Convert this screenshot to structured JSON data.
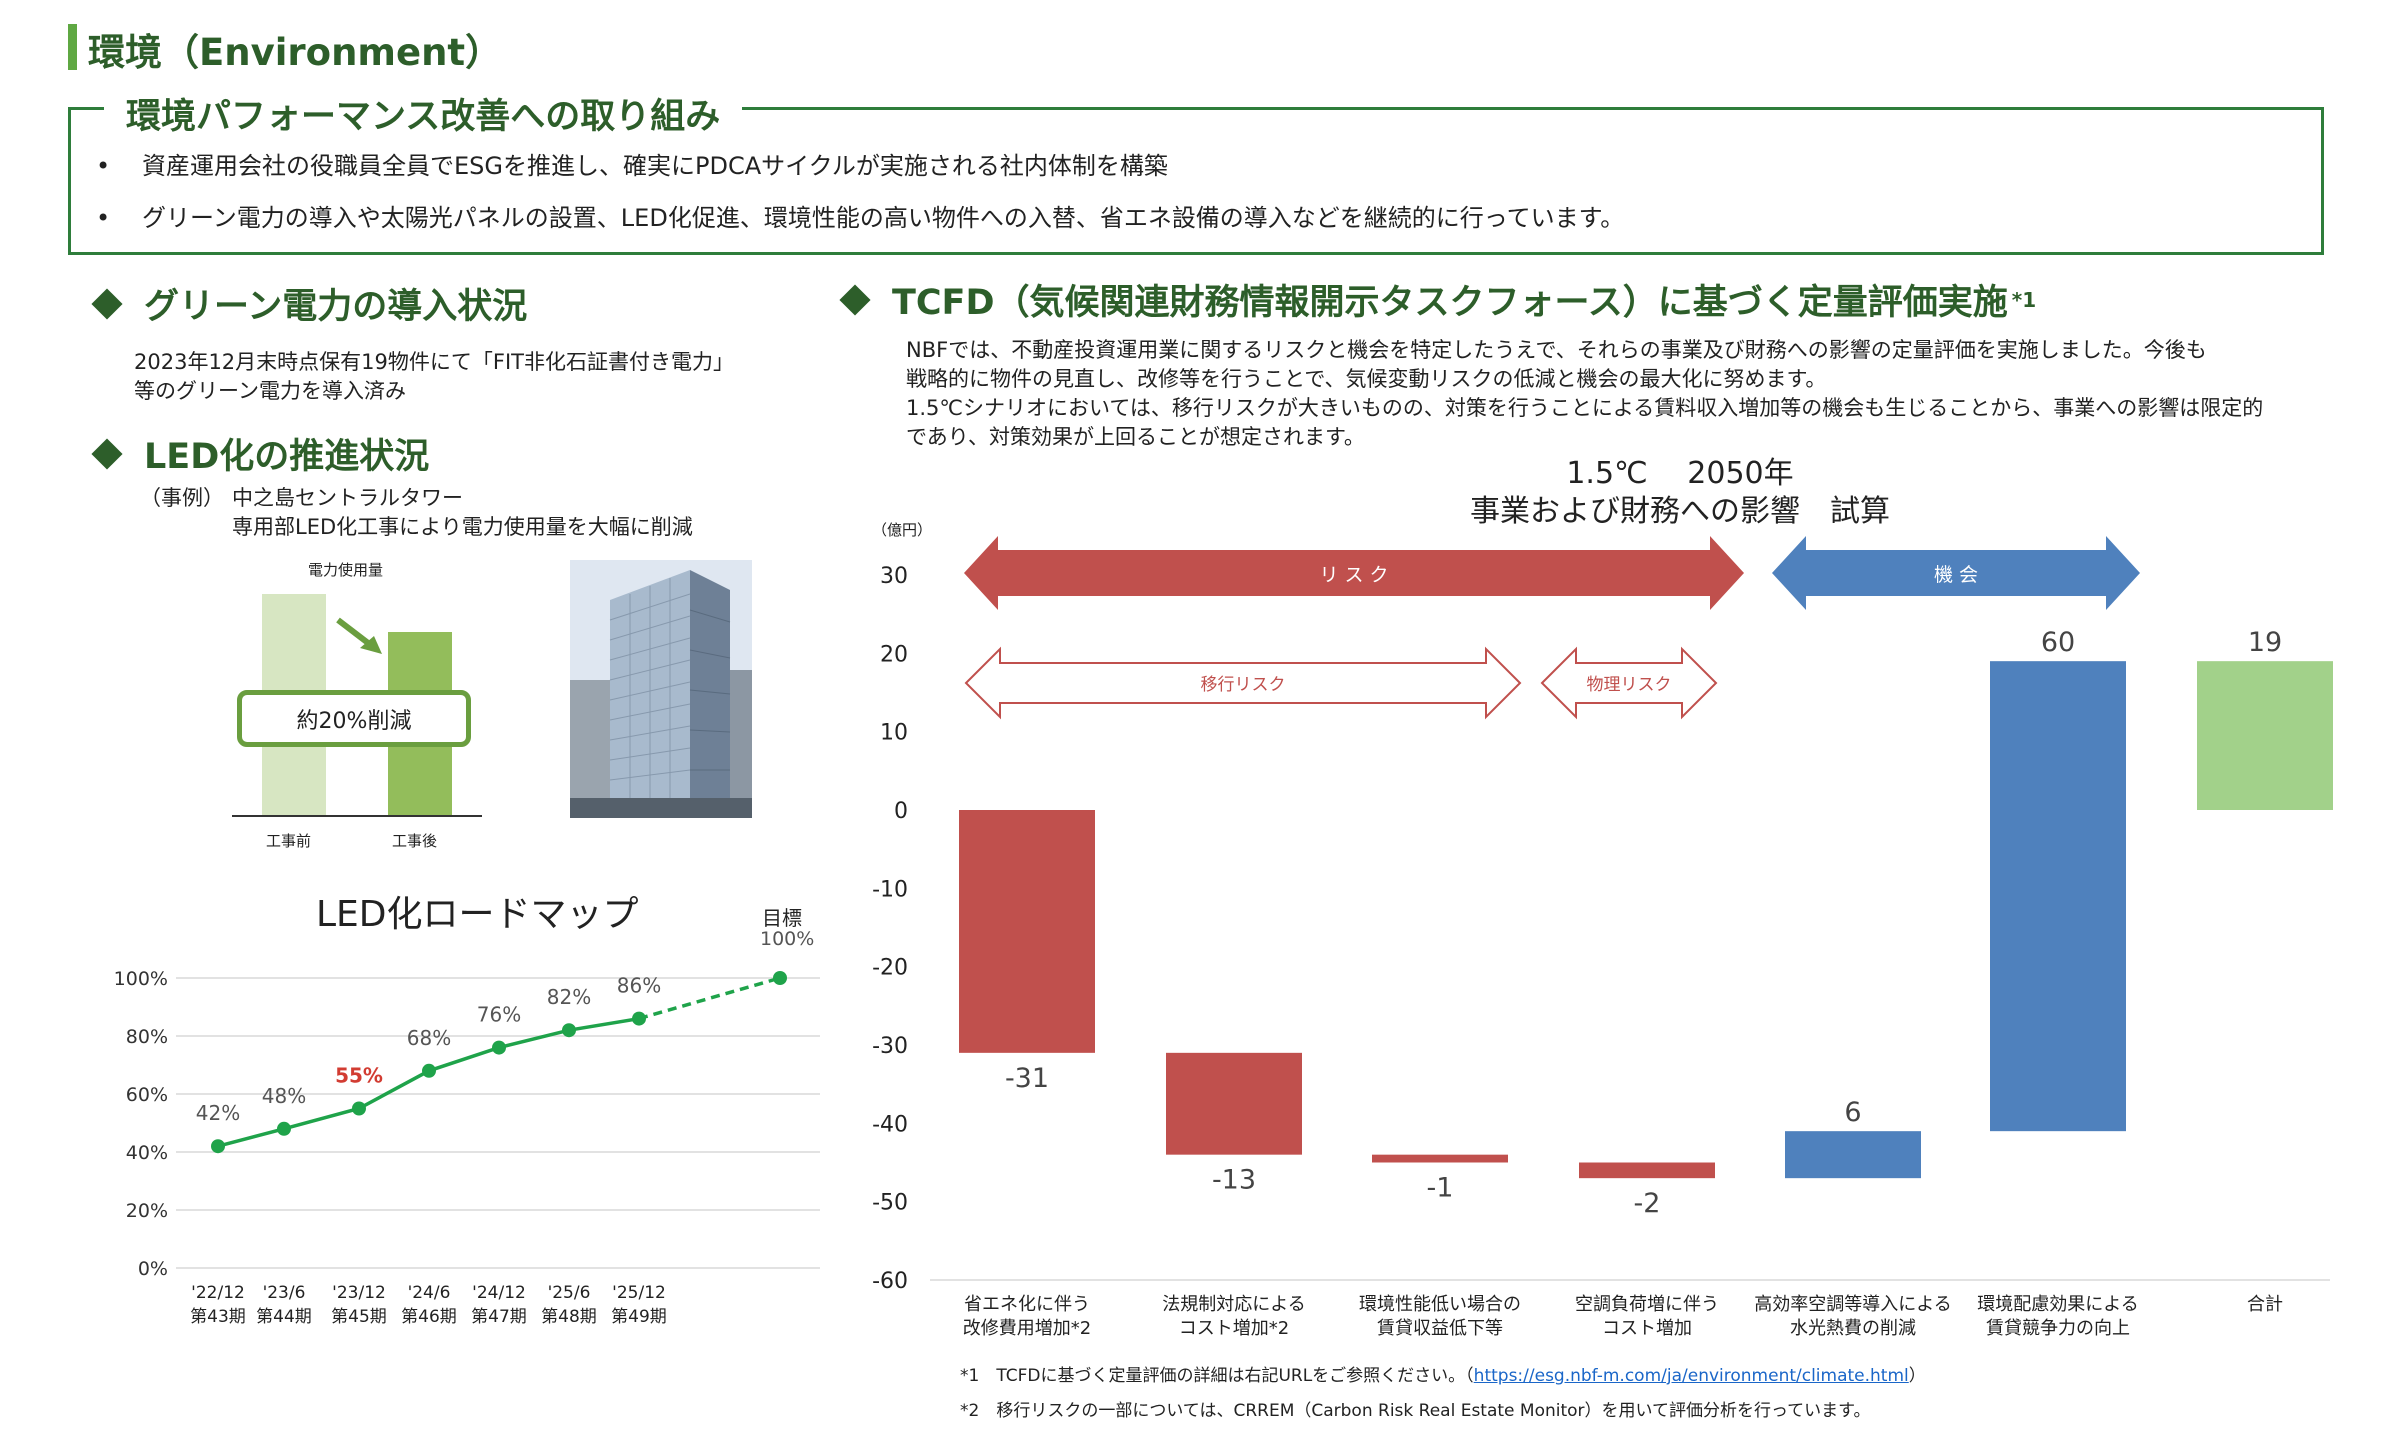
{
  "header": {
    "title": "環境（Environment）"
  },
  "performance": {
    "title": "環境パフォーマンス改善への取り組み",
    "bullets": [
      "資産運用会社の役職員全員でESGを推進し、確実にPDCAサイクルが実施される社内体制を構築",
      "グリーン電力の導入や太陽光パネルの設置、LED化促進、環境性能の高い物件への入替、省エネ設備の導入などを継続的に行っています。"
    ],
    "bullet_mark": "•"
  },
  "green_power": {
    "title": "グリーン電力の導入状況",
    "lines": [
      "2023年12月末時点保有19物件にて「FIT非化石証書付き電力」",
      "等のグリーン電力を導入済み"
    ]
  },
  "led": {
    "title": "LED化の推進状況",
    "case_label": "（事例）",
    "case_lines": [
      "中之島セントラルタワー",
      "専用部LED化工事により電力使用量を大幅に削減"
    ],
    "usage_label": "電力使用量",
    "reduction": "約20%削減",
    "before_label": "工事前",
    "after_label": "工事後",
    "before_value": 100,
    "after_value": 80
  },
  "roadmap": {
    "title": "LED化ロードマップ",
    "target_label": "目標",
    "target_value_label": "100%"
  },
  "tcfd": {
    "title": "TCFD（気候関連財務情報開示タスクフォース）に基づく定量評価実施",
    "title_sup": "*1",
    "lines": [
      "NBFでは、不動産投資運用業に関するリスクと機会を特定したうえで、それらの事業及び財務への影響の定量評価を実施しました。今後も",
      "戦略的に物件の見直し、改修等を行うことで、気候変動リスクの低減と機会の最大化に努めます。",
      "1.5℃シナリオにおいては、移行リスクが大きいものの、対策を行うことによる賃料収入増加等の機会も生じることから、事業への影響は限定的",
      "であり、対策効果が上回ることが想定されます。"
    ],
    "chart_title_1": "1.5℃　 2050年",
    "chart_title_2": "事業および財務への影響　試算",
    "unit": "（億円）",
    "risk_label": "リ ス ク",
    "opportunity_label": "機 会",
    "transition_label": "移行リスク",
    "physical_label": "物理リスク"
  },
  "footnotes": {
    "f1_prefix": "*1　TCFDに基づく定量評価の詳細は右記URLをご参照ください。（",
    "f1_url": "https://esg.nbf-m.com/ja/environment/climate.html",
    "f1_suffix": "）",
    "f2": "*2　移行リスクの一部については、CRREM（Carbon Risk Real Estate Monitor）を用いて評価分析を行っています。"
  },
  "colors": {
    "accent_green": "#2d5e2a",
    "risk_red": "#c0504d",
    "opportunity_blue": "#4f81bd",
    "total_green": "#a2d18a",
    "line_green": "#1fa34a",
    "highlight_red": "#d23c32"
  },
  "chart_data": [
    {
      "type": "line",
      "title": "LED化ロードマップ",
      "x": [
        "'22/12\n第43期",
        "'23/6\n第44期",
        "'23/12\n第45期",
        "'24/6\n第46期",
        "'24/12\n第47期",
        "'25/6\n第48期",
        "'25/12\n第49期",
        ""
      ],
      "series": [
        {
          "values": [
            42,
            48,
            55,
            68,
            76,
            82,
            86,
            100
          ]
        }
      ],
      "data_labels": [
        "42%",
        "48%",
        "55%",
        "68%",
        "76%",
        "82%",
        "86%",
        ""
      ],
      "highlight_index": 2,
      "dashed_segment_from": 6,
      "yticks": [
        "0%",
        "20%",
        "40%",
        "60%",
        "80%",
        "100%"
      ],
      "ylim": [
        0,
        100
      ],
      "grid": true
    },
    {
      "type": "bar",
      "subtype": "waterfall",
      "categories": [
        "省エネ化に伴う\n改修費用増加*2",
        "法規制対応による\nコスト増加*2",
        "環境性能低い場合の\n賃貸収益低下等",
        "空調負荷増に伴う\nコスト増加",
        "高効率空調等導入による\n水光熱費の削減",
        "環境配慮効果による\n賃貸競争力の向上",
        "合計"
      ],
      "values": [
        -31,
        -13,
        -1,
        -2,
        6,
        60,
        19
      ],
      "data_labels": [
        "-31",
        "-13",
        "-1",
        "-2",
        "6",
        "60",
        "19"
      ],
      "ylabel": "（億円）",
      "ylim": [
        -60,
        30
      ],
      "yticks": [
        "30",
        "20",
        "10",
        "0",
        "-10",
        "-20",
        "-30",
        "-40",
        "-50",
        "-60"
      ],
      "grid": true
    }
  ]
}
